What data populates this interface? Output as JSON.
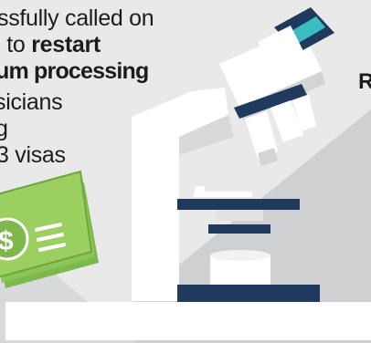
{
  "headline": {
    "line1": "ssfully called on",
    "line2_pre": ". to ",
    "line2_bold": "restart",
    "line3": "um processing",
    "line4": "sicians",
    "line5": "g",
    "line6": "3 visas"
  },
  "right_fragment": "R",
  "colors": {
    "background": "#e6e6e6",
    "panel_gray": "#cfd0d2",
    "navy": "#1f3a5c",
    "teal": "#3bbcc0",
    "money_green": "#9bcf5f",
    "money_dark": "#6aa83f",
    "white": "#ffffff"
  },
  "icons": [
    "dollar-bill-icon",
    "microscope-icon"
  ]
}
